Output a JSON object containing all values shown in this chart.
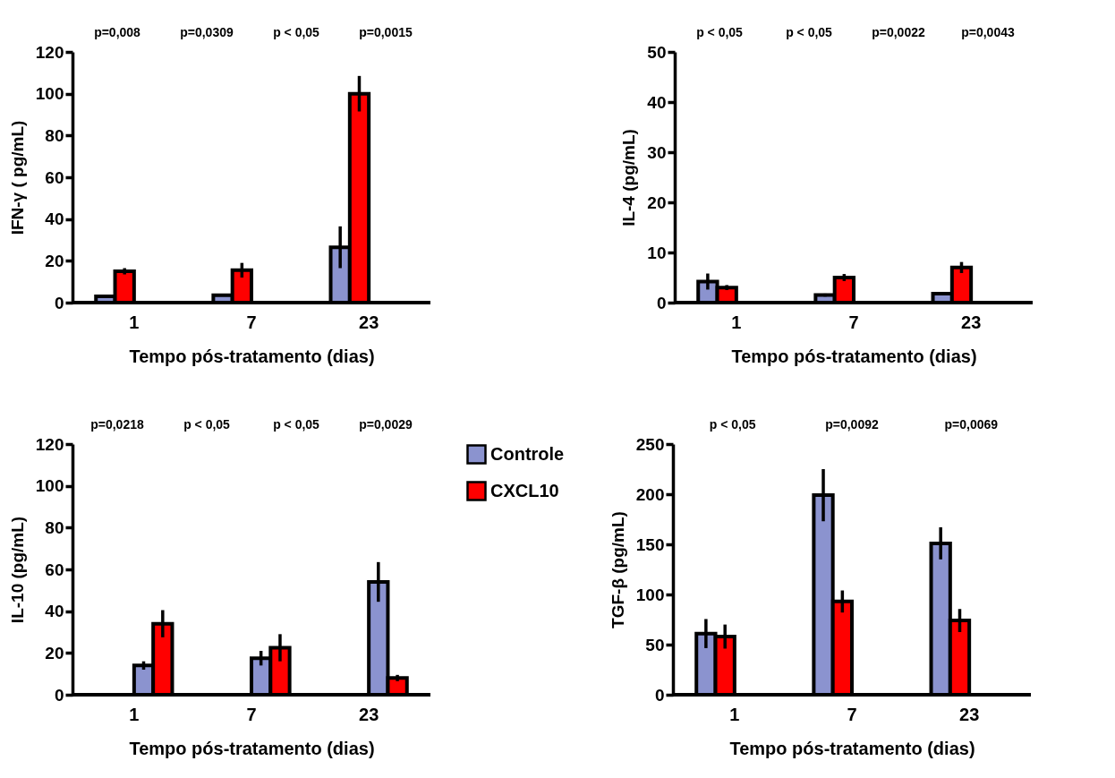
{
  "chart_data": [
    {
      "type": "bar",
      "categories": [
        "1",
        "7",
        "23"
      ],
      "xlabel": "Tempo pós-tratamento (dias)",
      "ylabel": "IFN-γ ( pg/mL)",
      "ylim": [
        0,
        120
      ],
      "yticks": [
        0,
        20,
        40,
        60,
        80,
        100,
        120
      ],
      "grid": false,
      "series": [
        {
          "color": "#8b93cf",
          "values": [
            3,
            3.5,
            26.5
          ],
          "errors": [
            0.5,
            null,
            10
          ]
        },
        {
          "color": "#ff0000",
          "values": [
            15,
            15.5,
            100
          ],
          "errors": [
            1.5,
            3.5,
            8.5
          ]
        }
      ],
      "annotations": [
        "p=0,008",
        "p=0,0309",
        "p < 0,05",
        "p=0,0015"
      ]
    },
    {
      "type": "bar",
      "categories": [
        "1",
        "7",
        "23"
      ],
      "xlabel": "Tempo pós-tratamento (dias)",
      "ylabel": "IL-4 (pg/mL)",
      "ylim": [
        0,
        50
      ],
      "yticks": [
        0,
        10,
        20,
        30,
        40,
        50
      ],
      "grid": false,
      "series": [
        {
          "color": "#8b93cf",
          "values": [
            4.2,
            1.5,
            1.8
          ],
          "errors": [
            1.6,
            0.3,
            0.3
          ]
        },
        {
          "color": "#ff0000",
          "values": [
            3,
            5,
            7
          ],
          "errors": [
            0.5,
            0.7,
            1.1
          ]
        }
      ],
      "annotations": [
        "p < 0,05",
        "p < 0,05",
        "p=0,0022",
        "p=0,0043"
      ]
    },
    {
      "type": "bar",
      "categories": [
        "1",
        "7",
        "23"
      ],
      "xlabel": "Tempo pós-tratamento (dias)",
      "ylabel": "IL-10 (pg/mL)",
      "ylim": [
        0,
        120
      ],
      "yticks": [
        0,
        20,
        40,
        60,
        80,
        100,
        120
      ],
      "grid": false,
      "legend": "top right",
      "series": [
        {
          "name": "Controle",
          "color": "#8b93cf",
          "values": [
            14,
            17.5,
            54
          ],
          "errors": [
            2,
            3.5,
            9.5
          ]
        },
        {
          "name": "CXCL10",
          "color": "#ff0000",
          "values": [
            34,
            22.5,
            8
          ],
          "errors": [
            6.5,
            6.5,
            1.5
          ]
        }
      ],
      "annotations": [
        "p=0,0218",
        "p < 0,05",
        "p < 0,05",
        "p=0,0029"
      ]
    },
    {
      "type": "bar",
      "categories": [
        "1",
        "7",
        "23"
      ],
      "xlabel": "Tempo pós-tratamento (dias)",
      "ylabel": "TGF-β (pg/mL)",
      "ylim": [
        0,
        250
      ],
      "yticks": [
        0,
        50,
        100,
        150,
        200,
        250
      ],
      "grid": false,
      "series": [
        {
          "color": "#8b93cf",
          "values": [
            61,
            199,
            151
          ],
          "errors": [
            14.5,
            26,
            16
          ]
        },
        {
          "color": "#ff0000",
          "values": [
            58,
            93,
            74
          ],
          "errors": [
            12,
            11,
            11.5
          ]
        }
      ],
      "annotations": [
        "p < 0,05",
        "p=0,0092",
        "p=0,0069"
      ]
    }
  ]
}
